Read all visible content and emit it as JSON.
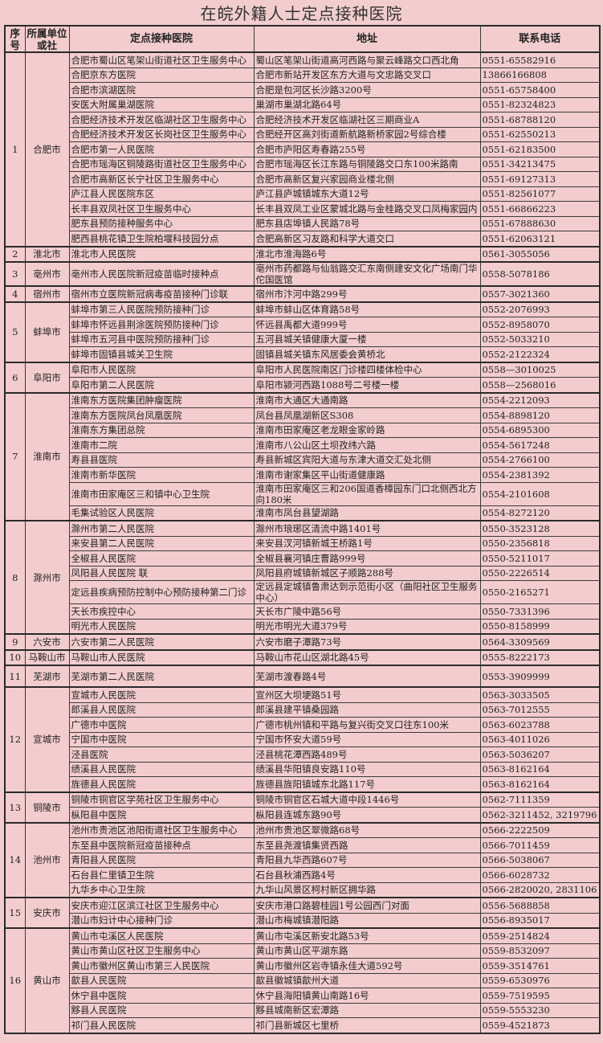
{
  "title": "在皖外籍人士定点接种医院",
  "headers": {
    "seq": "序号",
    "unit": "所属单位或社",
    "hospital": "定点接种医院",
    "address": "地址",
    "phone": "联系电话"
  },
  "colors": {
    "background": "#f3cdce",
    "border": "#2a2a2a"
  },
  "groups": [
    {
      "seq": "1",
      "unit": "合肥市",
      "rows": [
        [
          "合肥市蜀山区笔架山街道社区卫生服务中心",
          "蜀山区笔架山街道高河西路与聚云峰路交口西北角",
          "0551-65582916"
        ],
        [
          "合肥京东方医院",
          "合肥市新站开发区东方大道与文忠路交叉口",
          "13866166808"
        ],
        [
          "合肥市滨湖医院",
          "合肥是包河区长沙路3200号",
          "0551-65758400"
        ],
        [
          "安医大附属巢湖医院",
          "巢湖市巢湖北路64号",
          "0551-82324823"
        ],
        [
          "合肥经济技术开发区临湖社区卫生服务中心",
          "合肥经济技术开发区临湖社区三期商业A",
          "0551-68788120"
        ],
        [
          "合肥经济技术开发区长岗社区卫生服务中心",
          "合肥经开区高刘街道新航路新桥家园2号综合楼",
          "0551-62550213"
        ],
        [
          "合肥市第一人民医院",
          "合肥市庐阳区寿春路255号",
          "0551-62183500"
        ],
        [
          "合肥市瑶海区铜陵路街道社区卫生服务中心",
          "合肥市瑶海区长江东路与铜陵路交口东100米路南",
          "0551-34213475"
        ],
        [
          "合肥市高新区长宁社区卫生服务中心",
          "合肥市高新区复兴家园商业楼北侧",
          "0551-69127313"
        ],
        [
          "庐江县人民医院东区",
          "庐江县庐城镇城东大道12号",
          "0551-82561077"
        ],
        [
          "长丰县双凤社区卫生服务中心",
          "长丰县双凤工业区蒙城北路与金桂路交叉口凤梅家园内",
          "0551-66866223"
        ],
        [
          "肥东县预防接种服务中心",
          "肥东县店埠镇人民路78号",
          "0551-67888630"
        ],
        [
          "肥西县桃花镇卫生院柏堰科技园分点",
          "合肥高新区习友路和科学大道交口",
          "0551-62063121"
        ]
      ]
    },
    {
      "seq": "2",
      "unit": "淮北市",
      "rows": [
        [
          "淮北市人民医院",
          "淮北市淮海路6号",
          "0561-3055056"
        ]
      ]
    },
    {
      "seq": "3",
      "unit": "亳州市",
      "rows": [
        [
          "亳州市人民医院新冠疫苗临时接种点",
          "亳州市药都路与仙翁路交汇东南侧建安文化广场南门华佗国医馆",
          "0558-5078186"
        ]
      ]
    },
    {
      "seq": "4",
      "unit": "宿州市",
      "rows": [
        [
          "宿州市立医院新冠病毒疫苗接种门诊联",
          "宿州市汴河中路299号",
          "0557-3021360"
        ]
      ]
    },
    {
      "seq": "5",
      "unit": "蚌埠市",
      "rows": [
        [
          "蚌埠市第三人民医院预防接种门诊",
          "蚌埠市蚌山区体育路58号",
          "0552-2076993"
        ],
        [
          "蚌埠市怀远县荆涂医院预防接种门诊",
          "怀远县禹都大道999号",
          "0552-8958070"
        ],
        [
          "蚌埠市五河县中医院预防接种门诊",
          "五河县城关镇健康大厦一楼",
          "0552-5033210"
        ],
        [
          "蚌埠市固镇县城关卫生院",
          "固镇县城关镇东风居委会黄桥北",
          "0552-2122324"
        ]
      ]
    },
    {
      "seq": "6",
      "unit": "阜阳市",
      "rows": [
        [
          "阜阳市人民医院",
          "阜阳市人民医院南区门诊楼四楼体检中心",
          "0558—3010025"
        ],
        [
          "阜阳市第二人民医院",
          "阜阳市颍河西路1088号二号楼一楼",
          "0558—2568016"
        ]
      ]
    },
    {
      "seq": "7",
      "unit": "淮南市",
      "rows": [
        [
          "淮南东方医院集团肿瘤医院",
          "淮南市大通区大通南路",
          "0554-2212093"
        ],
        [
          "淮南东方医院凤台凤凰医院",
          "凤台县凤凰湖新区S308",
          "0554-8898120"
        ],
        [
          "淮南东方集团总院",
          "淮南市田家庵区老龙眼金家岭路",
          "0554-6895300"
        ],
        [
          "淮南市二院",
          "淮南市八公山区土坝孜纬六路",
          "0554-5617248"
        ],
        [
          "寿县县医院",
          "寿县新城区宾阳大道与东津大道交汇处北侧",
          "0554-2766100"
        ],
        [
          "淮南市新华医院",
          "淮南市谢家集区平山街道健康路",
          "0554-2381392"
        ],
        [
          "淮南市田家庵区三和镇中心卫生院",
          "淮南市田家庵区三和206国道香樟园东门口北侧西北方向180米",
          "0554-2101608"
        ],
        [
          "毛集试验区人民医院",
          "淮南市凤台县望湖路",
          "0554-8272120"
        ]
      ]
    },
    {
      "seq": "8",
      "unit": "滁州市",
      "rows": [
        [
          "滁州市第二人民医院",
          "滁州市琅琊区清流中路1401号",
          "0550-3523128"
        ],
        [
          "来安县第二人民医院",
          "来安县汊河镇新城王桥路1号",
          "0550-2356818"
        ],
        [
          "全椒县人民医院",
          "全椒县襄河镇庄曹路999号",
          "0550-5211017"
        ],
        [
          "凤阳县人民医院 联",
          "凤阳县府城镇新城区子顺路288号",
          "0550-2226514"
        ],
        [
          "定远县疾病预防控制中心预防接种第二门诊",
          "定远县定城镇鲁肃达到示范街小区（曲阳社区卫生服务中心）",
          "0550-2165271"
        ],
        [
          "天长市疾控中心",
          "天长市广陵中路56号",
          "0550-7331396"
        ],
        [
          "明光市人民医院",
          "明光市明光大道379号",
          "0550-8158999"
        ]
      ]
    },
    {
      "seq": "9",
      "unit": "六安市",
      "rows": [
        [
          "六安市第二人民医院",
          "六安市磨子潭路73号",
          "0564-3309569"
        ]
      ]
    },
    {
      "seq": "10",
      "unit": "马鞍山市",
      "rows": [
        [
          "马鞍山市人民医院",
          "马鞍山市花山区湖北路45号",
          "0555-8222173"
        ]
      ]
    },
    {
      "seq": "11",
      "unit": "芜湖市",
      "rows": [
        [
          "芜湖市第二人民医院",
          "芜湖市渡春路4号",
          "0553-3909999"
        ]
      ]
    },
    {
      "seq": "12",
      "unit": "宣城市",
      "rows": [
        [
          "宣城市人民医院",
          "宣州区大坝埂路51号",
          "0563-3033505"
        ],
        [
          "郎溪县人民医院",
          "郎溪县建平镇桑园路",
          "0563-7012555"
        ],
        [
          "广德市中医院",
          "广德市桃州镇和平路与复兴街交叉口往东100米",
          "0563-6023788"
        ],
        [
          "宁国市中医院",
          "宁国市怀安大道59号",
          "0563-4011026"
        ],
        [
          "泾县医院",
          "泾县桃花潭西路489号",
          "0563-5036207"
        ],
        [
          "绩溪县人民医院",
          "绩溪县华阳镇良安路110号",
          "0563-8162164"
        ],
        [
          "旌德县人民医院",
          "旌德县旌阳镇城东北路117号",
          "0563-8162164"
        ]
      ]
    },
    {
      "seq": "13",
      "unit": "铜陵市",
      "rows": [
        [
          "铜陵市铜官区学苑社区卫生服务中心",
          "铜陵市铜官区石城大道中段1446号",
          "0562-7111359"
        ],
        [
          "枞阳县中医院",
          "枞阳县连城东路90号",
          "0562-3211452, 3219796"
        ]
      ]
    },
    {
      "seq": "14",
      "unit": "池州市",
      "rows": [
        [
          "池州市贵池区池阳街道社区卫生服务中心",
          "池州市贵池区翠微路68号",
          "0566-2222509"
        ],
        [
          "东至县中医院新冠疫苗接种点",
          "东至县尧渡镇集贤西路",
          "0566-7011459"
        ],
        [
          "青阳县人民医院",
          "青阳县九华西路607号",
          "0566-5038067"
        ],
        [
          "石台县仁里镇卫生院",
          "石台县秋浦西路4号",
          "0566-6028732"
        ],
        [
          "九华乡中心卫生院",
          "九华山风景区柯村新区拥华路",
          "0566-2820020, 2831106"
        ]
      ]
    },
    {
      "seq": "15",
      "unit": "安庆市",
      "rows": [
        [
          "安庆市迎江区滨江社区卫生服务中心",
          "安庆市港口路碧桂园1号公园西门对面",
          "0556-5688858"
        ],
        [
          "潜山市妇计中心接种门诊",
          "潜山市梅城镇潜阳路",
          "0556-8935017"
        ]
      ]
    },
    {
      "seq": "16",
      "unit": "黄山市",
      "rows": [
        [
          "黄山市屯溪区人民医院",
          "黄山市屯溪区新安北路53号",
          "0559-2514824"
        ],
        [
          "黄山市黄山区社区卫生服务中心",
          "黄山市黄山区平湖东路",
          "0559-8532097"
        ],
        [
          "黄山市徽州区黄山市第三人民医院",
          "黄山市徽州区岩寺镇永佳大道592号",
          "0559-3514761"
        ],
        [
          "歙县人民医院",
          "歙县徽城镇歙州大道",
          "0559-6530976"
        ],
        [
          "休宁县中医院",
          "休宁县海阳镇黄山南路16号",
          "0559-7519595"
        ],
        [
          "黟县人民医院",
          "黟县城南新区宏潭路",
          "0559-5553230"
        ],
        [
          "祁门县人民医院",
          "祁门县新城区七里桥",
          "0559-4521873"
        ]
      ]
    }
  ]
}
